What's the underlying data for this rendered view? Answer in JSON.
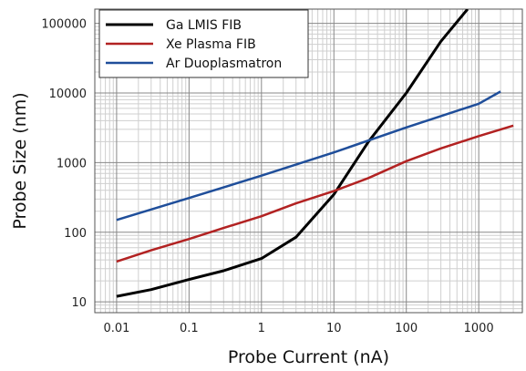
{
  "chart_data": {
    "type": "line",
    "xlabel": "Probe Current (nA)",
    "ylabel": "Probe Size (nm)",
    "x_scale": "log",
    "y_scale": "log",
    "xlim": [
      0.005,
      4000
    ],
    "ylim": [
      7,
      160000
    ],
    "grid": true,
    "legend_position": "top-left",
    "x_ticks": [
      {
        "value": 0.01,
        "label": "0.01"
      },
      {
        "value": 0.1,
        "label": "0.1"
      },
      {
        "value": 1,
        "label": "1"
      },
      {
        "value": 10,
        "label": "10"
      },
      {
        "value": 100,
        "label": "100"
      },
      {
        "value": 1000,
        "label": "1000"
      }
    ],
    "y_ticks": [
      {
        "value": 10,
        "label": "10"
      },
      {
        "value": 100,
        "label": "100"
      },
      {
        "value": 1000,
        "label": "1000"
      },
      {
        "value": 10000,
        "label": "10000"
      },
      {
        "value": 100000,
        "label": "100000"
      }
    ],
    "series": [
      {
        "name": "Ga LMIS FIB",
        "color": "#000000",
        "x": [
          0.01,
          0.03,
          0.1,
          0.3,
          1,
          3,
          10,
          30,
          100,
          300,
          700
        ],
        "y": [
          12,
          15,
          21,
          28,
          42,
          85,
          350,
          2000,
          10000,
          55000,
          160000
        ]
      },
      {
        "name": "Xe Plasma FIB",
        "color": "#b22222",
        "x": [
          0.01,
          0.03,
          0.1,
          0.3,
          1,
          3,
          10,
          30,
          100,
          300,
          1000,
          3000
        ],
        "y": [
          38,
          55,
          80,
          115,
          170,
          260,
          390,
          600,
          1050,
          1600,
          2400,
          3400
        ]
      },
      {
        "name": "Ar Duoplasmatron",
        "color": "#1f4e9a",
        "x": [
          0.01,
          0.1,
          1,
          10,
          100,
          1000,
          2000
        ],
        "y": [
          150,
          310,
          650,
          1400,
          3200,
          7000,
          10500
        ]
      }
    ]
  }
}
